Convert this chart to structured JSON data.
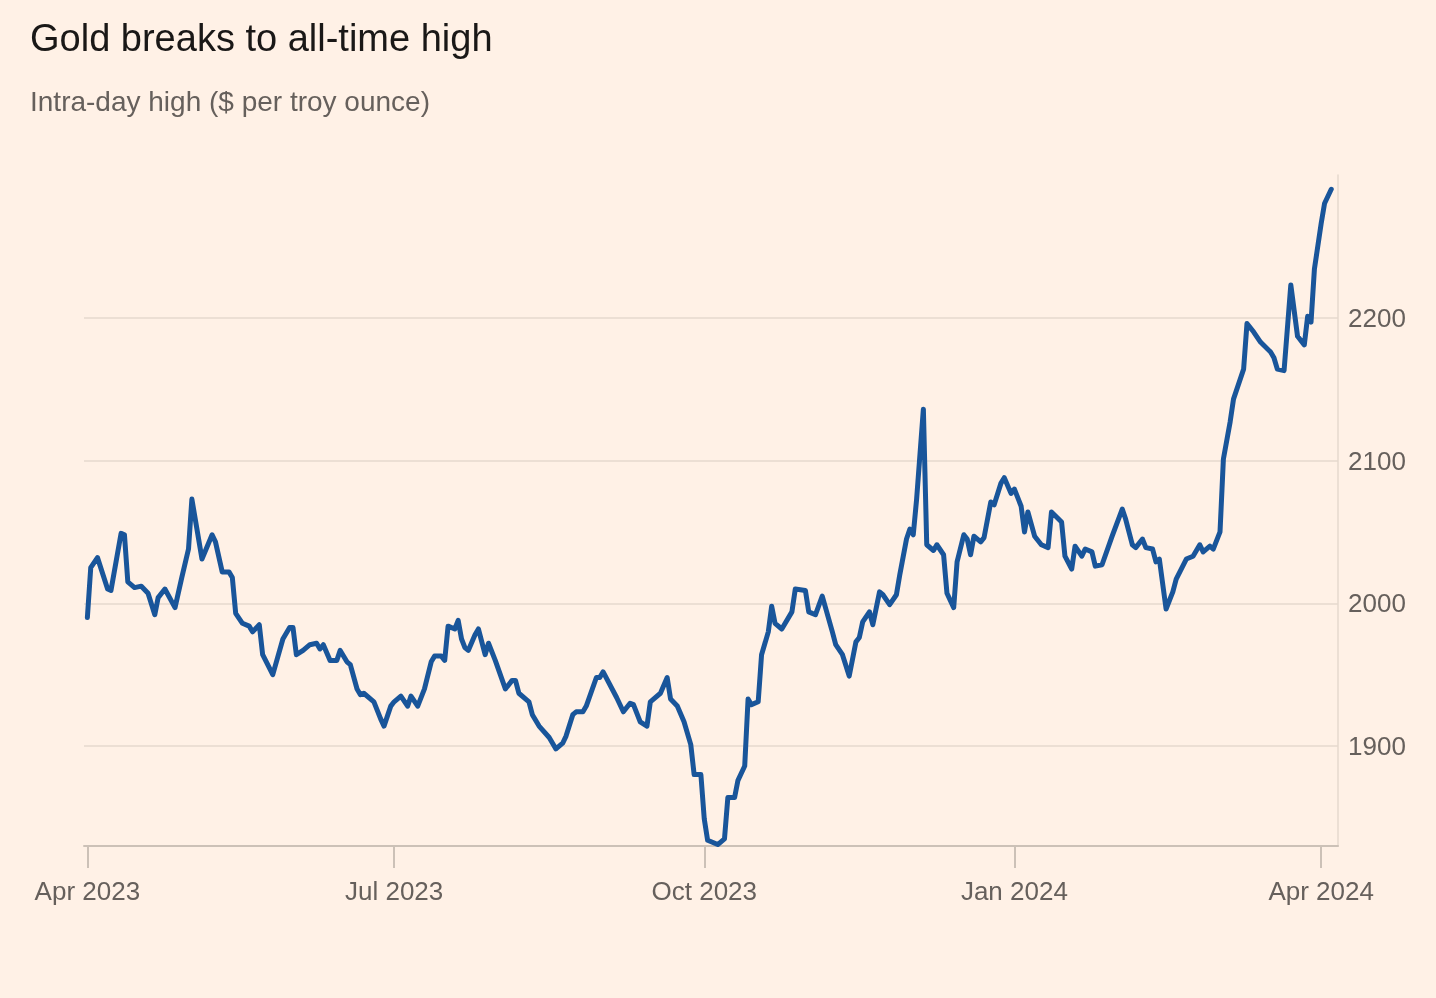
{
  "chart_data": {
    "type": "line",
    "title": "Gold breaks to all-time high",
    "subtitle": "Intra-day high ($ per troy ounce)",
    "x": [
      "2023-04-01",
      "2023-04-02",
      "2023-04-04",
      "2023-04-07",
      "2023-04-08",
      "2023-04-11",
      "2023-04-12",
      "2023-04-13",
      "2023-04-15",
      "2023-04-17",
      "2023-04-19",
      "2023-04-21",
      "2023-04-22",
      "2023-04-24",
      "2023-04-27",
      "2023-04-29",
      "2023-05-01",
      "2023-05-02",
      "2023-05-05",
      "2023-05-08",
      "2023-05-09",
      "2023-05-11",
      "2023-05-13",
      "2023-05-14",
      "2023-05-15",
      "2023-05-17",
      "2023-05-19",
      "2023-05-20",
      "2023-05-22",
      "2023-05-23",
      "2023-05-26",
      "2023-05-29",
      "2023-05-31",
      "2023-06-01",
      "2023-06-02",
      "2023-06-04",
      "2023-06-06",
      "2023-06-08",
      "2023-06-09",
      "2023-06-10",
      "2023-06-12",
      "2023-06-14",
      "2023-06-15",
      "2023-06-17",
      "2023-06-18",
      "2023-06-20",
      "2023-06-21",
      "2023-06-22",
      "2023-06-25",
      "2023-06-27",
      "2023-06-28",
      "2023-06-30",
      "2023-07-01",
      "2023-07-03",
      "2023-07-05",
      "2023-07-06",
      "2023-07-08",
      "2023-07-10",
      "2023-07-12",
      "2023-07-13",
      "2023-07-15",
      "2023-07-16",
      "2023-07-17",
      "2023-07-19",
      "2023-07-20",
      "2023-07-21",
      "2023-07-22",
      "2023-07-23",
      "2023-07-25",
      "2023-07-26",
      "2023-07-28",
      "2023-07-29",
      "2023-07-31",
      "2023-08-03",
      "2023-08-05",
      "2023-08-06",
      "2023-08-07",
      "2023-08-10",
      "2023-08-11",
      "2023-08-13",
      "2023-08-16",
      "2023-08-18",
      "2023-08-20",
      "2023-08-21",
      "2023-08-23",
      "2023-08-24",
      "2023-08-26",
      "2023-08-27",
      "2023-08-30",
      "2023-08-31",
      "2023-09-01",
      "2023-09-05",
      "2023-09-07",
      "2023-09-09",
      "2023-09-10",
      "2023-09-12",
      "2023-09-14",
      "2023-09-15",
      "2023-09-18",
      "2023-09-20",
      "2023-09-21",
      "2023-09-23",
      "2023-09-25",
      "2023-09-27",
      "2023-09-28",
      "2023-09-30",
      "2023-10-01",
      "2023-10-02",
      "2023-10-05",
      "2023-10-07",
      "2023-10-08",
      "2023-10-10",
      "2023-10-11",
      "2023-10-13",
      "2023-10-14",
      "2023-10-15",
      "2023-10-17",
      "2023-10-18",
      "2023-10-20",
      "2023-10-21",
      "2023-10-22",
      "2023-10-24",
      "2023-10-27",
      "2023-10-28",
      "2023-10-31",
      "2023-11-01",
      "2023-11-03",
      "2023-11-05",
      "2023-11-08",
      "2023-11-09",
      "2023-11-11",
      "2023-11-13",
      "2023-11-15",
      "2023-11-16",
      "2023-11-17",
      "2023-11-19",
      "2023-11-20",
      "2023-11-22",
      "2023-11-23",
      "2023-11-25",
      "2023-11-27",
      "2023-11-28",
      "2023-11-30",
      "2023-12-01",
      "2023-12-02",
      "2023-12-03",
      "2023-12-05",
      "2023-12-06",
      "2023-12-08",
      "2023-12-09",
      "2023-12-11",
      "2023-12-12",
      "2023-12-14",
      "2023-12-15",
      "2023-12-17",
      "2023-12-18",
      "2023-12-19",
      "2023-12-20",
      "2023-12-22",
      "2023-12-23",
      "2023-12-25",
      "2023-12-26",
      "2023-12-28",
      "2023-12-29",
      "2023-12-31",
      "2024-01-01",
      "2024-01-03",
      "2024-01-04",
      "2024-01-05",
      "2024-01-07",
      "2024-01-09",
      "2024-01-11",
      "2024-01-12",
      "2024-01-15",
      "2024-01-16",
      "2024-01-18",
      "2024-01-19",
      "2024-01-21",
      "2024-01-22",
      "2024-01-24",
      "2024-01-25",
      "2024-01-27",
      "2024-01-30",
      "2024-02-02",
      "2024-02-03",
      "2024-02-05",
      "2024-02-06",
      "2024-02-08",
      "2024-02-09",
      "2024-02-11",
      "2024-02-12",
      "2024-02-13",
      "2024-02-15",
      "2024-02-17",
      "2024-02-18",
      "2024-02-21",
      "2024-02-23",
      "2024-02-25",
      "2024-02-26",
      "2024-02-28",
      "2024-02-29",
      "2024-03-02",
      "2024-03-03",
      "2024-03-05",
      "2024-03-06",
      "2024-03-09",
      "2024-03-10",
      "2024-03-12",
      "2024-03-14",
      "2024-03-17",
      "2024-03-18",
      "2024-03-19",
      "2024-03-21",
      "2024-03-23",
      "2024-03-25",
      "2024-03-27",
      "2024-03-28",
      "2024-03-29",
      "2024-03-30",
      "2024-04-01",
      "2024-04-02",
      "2024-04-04"
    ],
    "series": [
      {
        "color": "#19559a",
        "values": [
          1990,
          2025,
          2032,
          2010,
          2009,
          2049,
          2048,
          2015,
          2011,
          2012,
          2007,
          1992,
          2004,
          2010,
          1997,
          2018,
          2038,
          2073,
          2031,
          2048,
          2043,
          2022,
          2022,
          2018,
          1993,
          1986,
          1984,
          1980,
          1985,
          1964,
          1950,
          1975,
          1983,
          1983,
          1964,
          1967,
          1971,
          1972,
          1968,
          1971,
          1960,
          1960,
          1967,
          1959,
          1957,
          1940,
          1936,
          1937,
          1931,
          1919,
          1914,
          1928,
          1931,
          1935,
          1928,
          1935,
          1928,
          1940,
          1959,
          1963,
          1963,
          1960,
          1984,
          1982,
          1988,
          1975,
          1969,
          1967,
          1978,
          1982,
          1964,
          1972,
          1960,
          1940,
          1946,
          1946,
          1937,
          1931,
          1922,
          1914,
          1906,
          1898,
          1902,
          1907,
          1922,
          1924,
          1924,
          1928,
          1948,
          1948,
          1952,
          1934,
          1924,
          1930,
          1929,
          1917,
          1914,
          1931,
          1937,
          1948,
          1933,
          1928,
          1917,
          1901,
          1880,
          1880,
          1849,
          1834,
          1831,
          1835,
          1864,
          1864,
          1876,
          1886,
          1933,
          1929,
          1931,
          1964,
          1980,
          1998,
          1986,
          1982,
          1994,
          2010,
          2009,
          1994,
          1992,
          2005,
          1980,
          1971,
          1964,
          1949,
          1973,
          1976,
          1987,
          1994,
          1985,
          2008,
          2006,
          1999,
          2006,
          2020,
          2045,
          2052,
          2048,
          2073,
          2136,
          2041,
          2037,
          2041,
          2034,
          2007,
          1997,
          2029,
          2048,
          2045,
          2034,
          2047,
          2043,
          2046,
          2071,
          2069,
          2084,
          2088,
          2077,
          2080,
          2068,
          2050,
          2064,
          2047,
          2041,
          2039,
          2064,
          2057,
          2033,
          2024,
          2040,
          2033,
          2038,
          2036,
          2026,
          2027,
          2047,
          2066,
          2059,
          2041,
          2039,
          2045,
          2039,
          2038,
          2029,
          2031,
          1996,
          2008,
          2017,
          2031,
          2033,
          2041,
          2036,
          2040,
          2038,
          2050,
          2101,
          2127,
          2143,
          2164,
          2196,
          2190,
          2183,
          2176,
          2172,
          2164,
          2163,
          2223,
          2187,
          2181,
          2201,
          2197,
          2234,
          2266,
          2280,
          2290
        ]
      }
    ],
    "xlim": [
      "2023-03-31",
      "2024-04-06"
    ],
    "xticks": [
      {
        "value": "2023-04-01",
        "label": "Apr 2023"
      },
      {
        "value": "2023-07-01",
        "label": "Jul 2023"
      },
      {
        "value": "2023-10-01",
        "label": "Oct 2023"
      },
      {
        "value": "2024-01-01",
        "label": "Jan 2024"
      },
      {
        "value": "2024-04-01",
        "label": "Apr 2024"
      }
    ],
    "ylim": [
      1830,
      2300
    ],
    "yticks": [
      1900,
      2000,
      2100,
      2200
    ],
    "grid": "y",
    "legend": false,
    "marker": "none",
    "line_style": "solid"
  }
}
